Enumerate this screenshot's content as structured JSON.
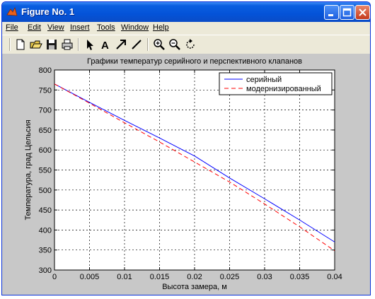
{
  "window": {
    "title": "Figure No. 1"
  },
  "menu": {
    "items": [
      {
        "label": "File"
      },
      {
        "label": "Edit"
      },
      {
        "label": "View"
      },
      {
        "label": "Insert"
      },
      {
        "label": "Tools"
      },
      {
        "label": "Window"
      },
      {
        "label": "Help"
      }
    ]
  },
  "toolbar": {
    "tools": [
      "new-file-icon",
      "open-folder-icon",
      "save-icon",
      "print-icon",
      "select-arrow-icon",
      "text-icon",
      "arrow-icon",
      "line-icon",
      "zoom-in-icon",
      "zoom-out-icon",
      "rotate-icon"
    ]
  },
  "colors": {
    "series1": "#0000ff",
    "series2": "#ff0000",
    "titlebar": "#0a5ee0"
  },
  "chart_data": {
    "type": "line",
    "title": "Графики температур серийного и перспективного клапанов",
    "xlabel": "Высота замера, м",
    "ylabel": "Температура, град Цельсия",
    "xlim": [
      0,
      0.04
    ],
    "ylim": [
      300,
      800
    ],
    "xticks": [
      "0",
      "0.005",
      "0.01",
      "0.015",
      "0.02",
      "0.025",
      "0.03",
      "0.035",
      "0.04"
    ],
    "yticks": [
      "300",
      "350",
      "400",
      "450",
      "500",
      "550",
      "600",
      "650",
      "700",
      "750",
      "800"
    ],
    "grid": true,
    "legend_position": "top-right",
    "series": [
      {
        "name": "серийный",
        "style": "solid",
        "x": [
          0,
          0.005,
          0.01,
          0.015,
          0.02,
          0.025,
          0.03,
          0.035,
          0.04
        ],
        "values": [
          765,
          719,
          674,
          630,
          585,
          530,
          478,
          425,
          370
        ]
      },
      {
        "name": "модернизированный",
        "style": "dashed",
        "x": [
          0,
          0.005,
          0.01,
          0.015,
          0.02,
          0.025,
          0.03,
          0.035,
          0.04
        ],
        "values": [
          765,
          717,
          668,
          620,
          570,
          520,
          465,
          408,
          348
        ]
      }
    ]
  }
}
